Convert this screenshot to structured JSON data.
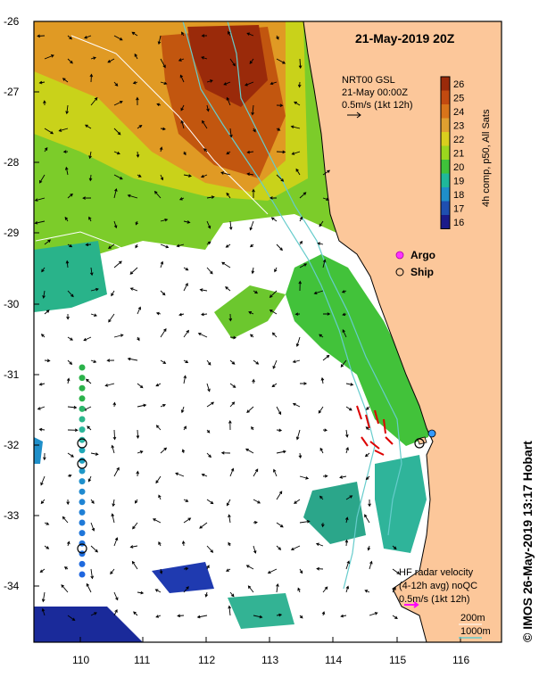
{
  "title": "21-May-2019 20Z",
  "legend_top": {
    "line1": "NRT00 GSL",
    "line2": "21-May 00:00Z",
    "line3": "0.5m/s (1kt 12h)"
  },
  "colorbar": {
    "title": "4h comp, p50, All Sats",
    "ticks": [
      "26",
      "25",
      "24",
      "23",
      "22",
      "21",
      "20",
      "19",
      "18",
      "17",
      "16"
    ],
    "colors": [
      "#9a2a0a",
      "#c24a10",
      "#d8741a",
      "#e0a030",
      "#d9cf1e",
      "#9bd61e",
      "#3fc23a",
      "#1fb89a",
      "#1f8fc9",
      "#1f4fb0",
      "#1a1a8a"
    ]
  },
  "symbols": {
    "argo_label": "Argo",
    "ship_label": "Ship",
    "argo_color": "#ff33ff"
  },
  "hf_legend": {
    "line1": "HF radar velocity",
    "line2": "(4-12h avg) noQC",
    "line3": "0.5m/s (1kt 12h)"
  },
  "depth_legend": {
    "c200": "200m",
    "c1000": "1000m",
    "c1000_color": "#66cccc"
  },
  "credit": "© IMOS 26-May-2019 13:17 Hobart",
  "axes": {
    "lat_labels": [
      "-26",
      "-27",
      "-28",
      "-29",
      "-30",
      "-31",
      "-32",
      "-33",
      "-34"
    ],
    "lon_labels": [
      "110",
      "111",
      "112",
      "113",
      "114",
      "115",
      "116"
    ]
  },
  "colors": {
    "land": "#fcc79a",
    "frame": "#000000",
    "hf_arrow": "#dd0000"
  }
}
